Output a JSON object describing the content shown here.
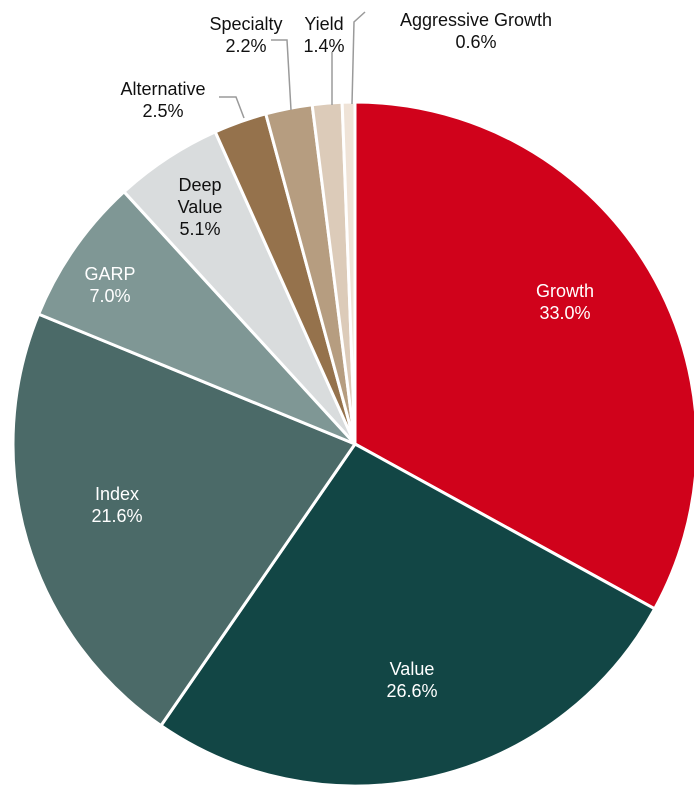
{
  "chart_data": {
    "type": "pie",
    "title": "",
    "slices": [
      {
        "label": "Growth",
        "value": 33.0,
        "value_label": "33.0%",
        "color": "#d0021b",
        "label_color": "#ffffff"
      },
      {
        "label": "Value",
        "value": 26.6,
        "value_label": "26.6%",
        "color": "#124645",
        "label_color": "#ffffff"
      },
      {
        "label": "Index",
        "value": 21.6,
        "value_label": "21.6%",
        "color": "#4b6a68",
        "label_color": "#ffffff"
      },
      {
        "label": "GARP",
        "value": 7.0,
        "value_label": "7.0%",
        "color": "#7f9795",
        "label_color": "#ffffff"
      },
      {
        "label": "Deep Value",
        "value": 5.1,
        "value_label": "5.1%",
        "color": "#d9dcdd",
        "label_color": "#111111"
      },
      {
        "label": "Alternative",
        "value": 2.5,
        "value_label": "2.5%",
        "color": "#95724c",
        "label_color": "#111111"
      },
      {
        "label": "Specialty",
        "value": 2.2,
        "value_label": "2.2%",
        "color": "#b69d80",
        "label_color": "#111111"
      },
      {
        "label": "Yield",
        "value": 1.4,
        "value_label": "1.4%",
        "color": "#dccbb9",
        "label_color": "#111111"
      },
      {
        "label": "Aggressive Growth",
        "value": 0.6,
        "value_label": "0.6%",
        "color": "#efe3d7",
        "label_color": "#111111"
      }
    ],
    "leader_line_color": "#9a9a9a",
    "slice_border_color": "#ffffff"
  }
}
